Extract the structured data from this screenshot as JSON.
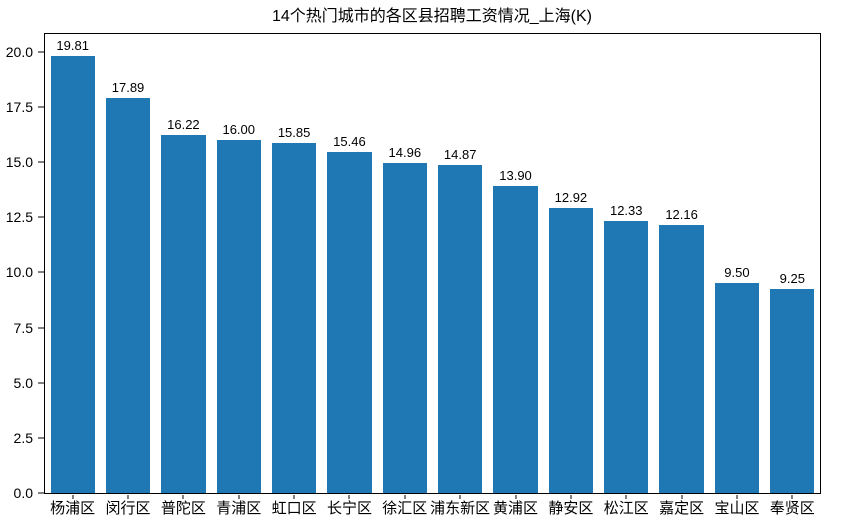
{
  "chart_data": {
    "type": "bar",
    "title": "14个热门城市的各区县招聘工资情况_上海(K)",
    "categories": [
      "杨浦区",
      "闵行区",
      "普陀区",
      "青浦区",
      "虹口区",
      "长宁区",
      "徐汇区",
      "浦东新区",
      "黄浦区",
      "静安区",
      "松江区",
      "嘉定区",
      "宝山区",
      "奉贤区"
    ],
    "values": [
      19.81,
      17.89,
      16.22,
      16.0,
      15.85,
      15.46,
      14.96,
      14.87,
      13.9,
      12.92,
      12.33,
      12.16,
      9.5,
      9.25
    ],
    "value_labels": [
      "19.81",
      "17.89",
      "16.22",
      "16.00",
      "15.85",
      "15.46",
      "14.96",
      "14.87",
      "13.90",
      "12.92",
      "12.33",
      "12.16",
      "9.50",
      "9.25"
    ],
    "xlabel": "",
    "ylabel": "",
    "ylim": [
      0,
      20.8
    ],
    "yticks": [
      0.0,
      2.5,
      5.0,
      7.5,
      10.0,
      12.5,
      15.0,
      17.5,
      20.0
    ],
    "ytick_labels": [
      "0.0",
      "2.5",
      "5.0",
      "7.5",
      "10.0",
      "12.5",
      "15.0",
      "17.5",
      "20.0"
    ],
    "grid": false,
    "legend_position": "none",
    "bar_color": "#1f77b4",
    "bar_width_fraction": 0.8
  }
}
